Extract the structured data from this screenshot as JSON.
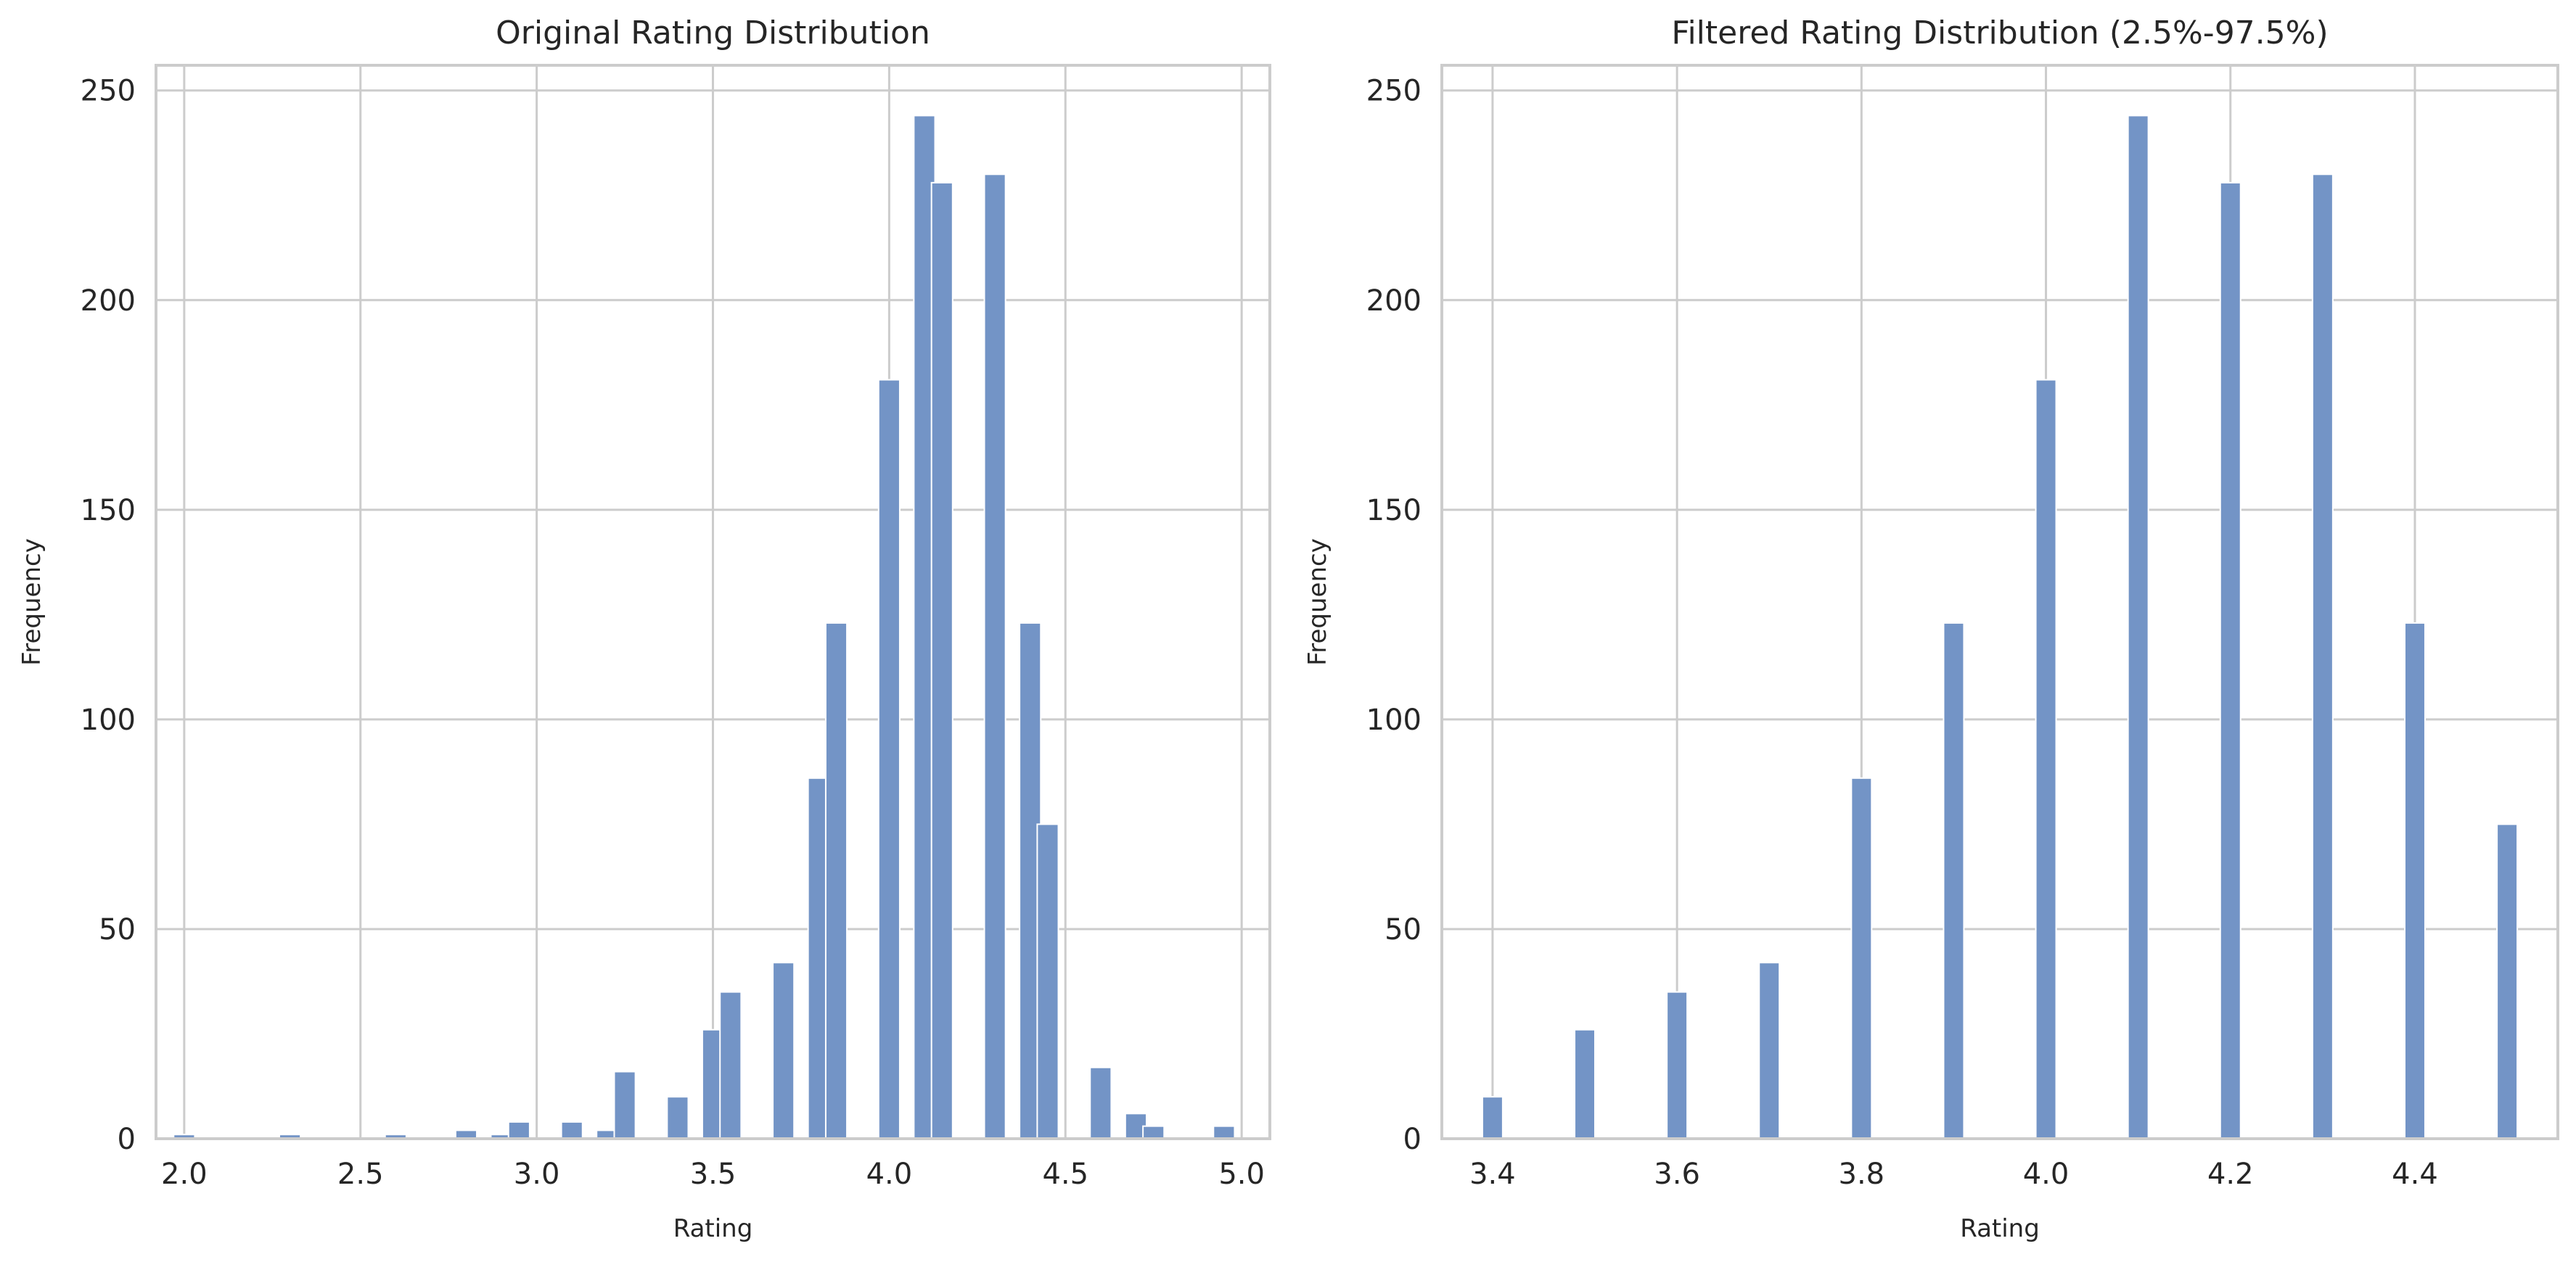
{
  "colors": {
    "bar": "#7394c6",
    "bar_edge": "#ffffff",
    "grid": "#cccccc",
    "spine": "#cccccc",
    "text": "#262626",
    "background": "#ffffff"
  },
  "chart_data": [
    {
      "type": "bar",
      "title": "Original Rating Distribution",
      "xlabel": "Rating",
      "ylabel": "Frequency",
      "xlim": [
        1.92,
        5.08
      ],
      "ylim": [
        0,
        256
      ],
      "xticks": [
        2.0,
        2.5,
        3.0,
        3.5,
        4.0,
        4.5,
        5.0
      ],
      "xtick_labels": [
        "2.0",
        "2.5",
        "3.0",
        "3.5",
        "4.0",
        "4.5",
        "5.0"
      ],
      "yticks": [
        0,
        50,
        100,
        150,
        200,
        250
      ],
      "ytick_labels": [
        "0",
        "50",
        "100",
        "150",
        "200",
        "250"
      ],
      "grid": true,
      "bin_width": 0.06,
      "series": [
        {
          "x": [
            2.0,
            2.3,
            2.6,
            2.8,
            2.9,
            2.95,
            3.1,
            3.2,
            3.25,
            3.4,
            3.5,
            3.55,
            3.7,
            3.8,
            3.85,
            4.0,
            4.1,
            4.15,
            4.3,
            4.4,
            4.45,
            4.6,
            4.7,
            4.75,
            4.95
          ],
          "values": [
            1,
            1,
            1,
            2,
            1,
            4,
            4,
            2,
            16,
            10,
            26,
            35,
            42,
            86,
            123,
            181,
            244,
            228,
            230,
            123,
            75,
            17,
            6,
            3,
            3
          ]
        }
      ]
    },
    {
      "type": "bar",
      "title": "Filtered Rating Distribution (2.5%-97.5%)",
      "xlabel": "Rating",
      "ylabel": "Frequency",
      "xlim": [
        3.345,
        4.555
      ],
      "ylim": [
        0,
        256
      ],
      "xticks": [
        3.4,
        3.6,
        3.8,
        4.0,
        4.2,
        4.4
      ],
      "xtick_labels": [
        "3.4",
        "3.6",
        "3.8",
        "4.0",
        "4.2",
        "4.4"
      ],
      "yticks": [
        0,
        50,
        100,
        150,
        200,
        250
      ],
      "ytick_labels": [
        "0",
        "50",
        "100",
        "150",
        "200",
        "250"
      ],
      "grid": true,
      "bin_width": 0.022,
      "series": [
        {
          "x": [
            3.4,
            3.5,
            3.6,
            3.7,
            3.8,
            3.9,
            4.0,
            4.1,
            4.2,
            4.3,
            4.4,
            4.5
          ],
          "values": [
            10,
            26,
            35,
            42,
            86,
            123,
            181,
            244,
            228,
            230,
            123,
            75
          ]
        }
      ]
    }
  ]
}
